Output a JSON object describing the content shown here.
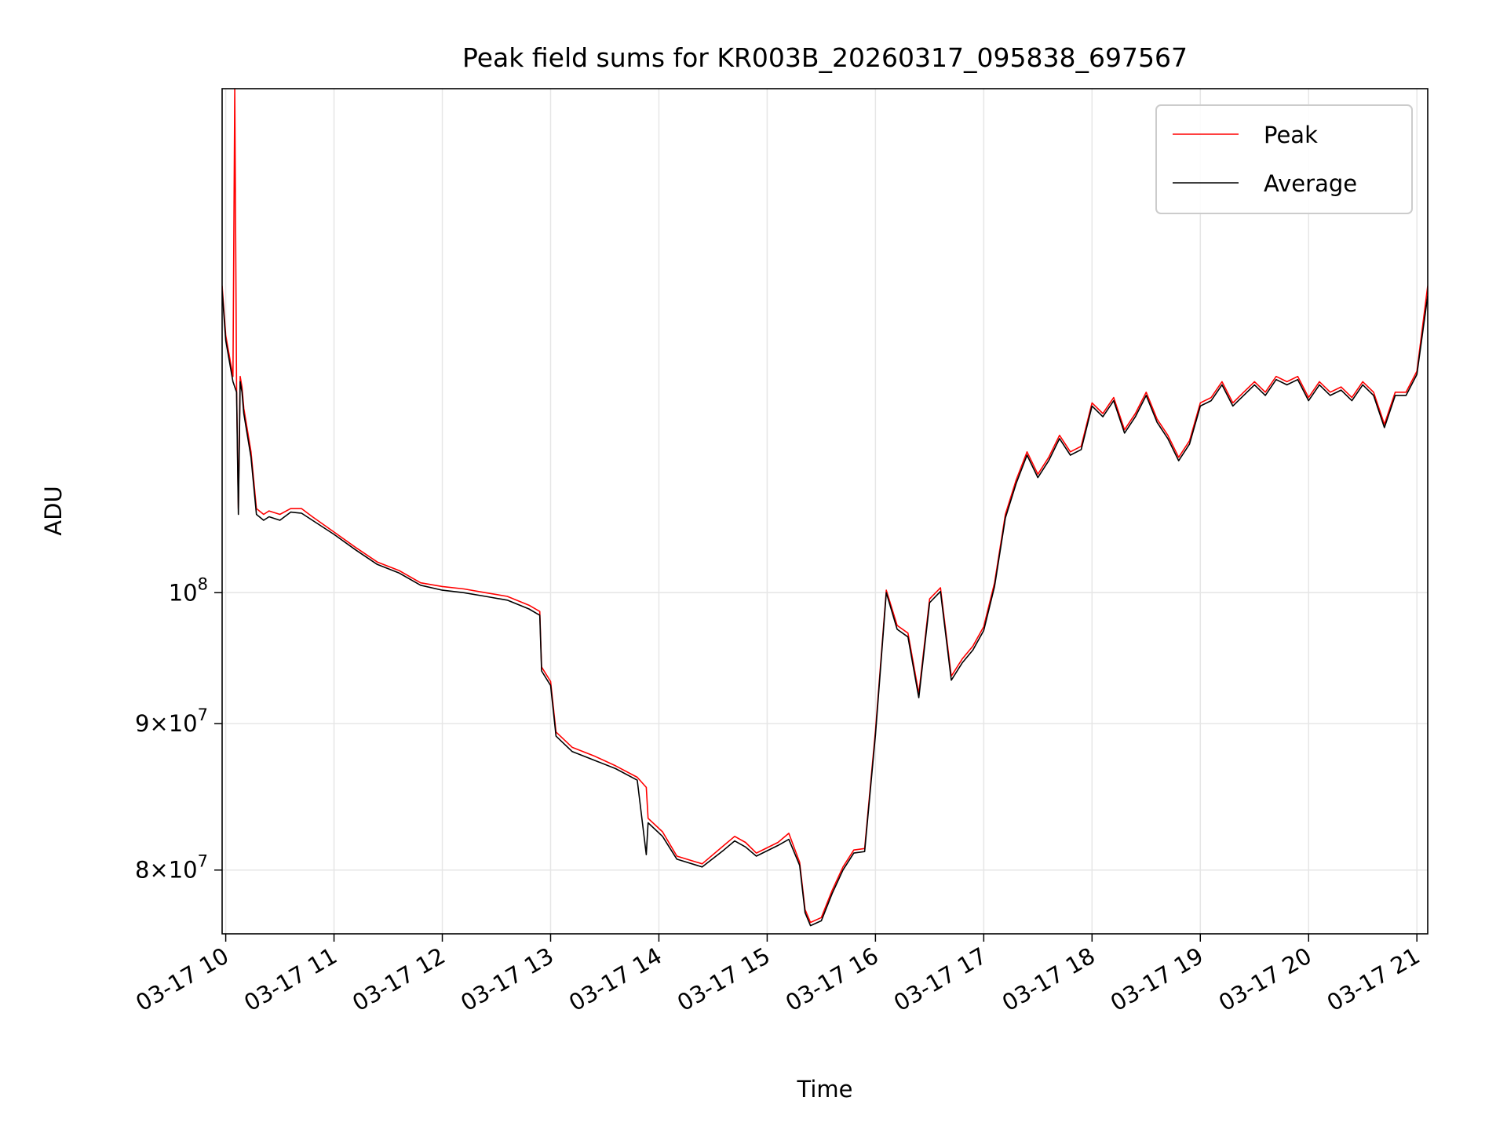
{
  "chart_data": {
    "type": "line",
    "title": "Peak field sums for KR003B_20260317_095838_697567",
    "xlabel": "Time",
    "ylabel": "ADU",
    "yscale": "log",
    "ylim": [
      76000000,
      150000000
    ],
    "xlim": [
      "2026-03-17 09:58",
      "2026-03-17 21:06"
    ],
    "grid": true,
    "legend": "top-right",
    "x_ticks": [
      "03-17 10",
      "03-17 11",
      "03-17 12",
      "03-17 13",
      "03-17 14",
      "03-17 15",
      "03-17 16",
      "03-17 17",
      "03-17 18",
      "03-17 19",
      "03-17 20",
      "03-17 21"
    ],
    "y_ticks": [
      {
        "value": 80000000,
        "mant": "8",
        "exp": "7"
      },
      {
        "value": 90000000,
        "mant": "9",
        "exp": "7"
      },
      {
        "value": 100000000,
        "mant": "",
        "exp": "8"
      }
    ],
    "colors": {
      "peak": "#ff0000",
      "average": "#000000"
    },
    "x": [
      "2026-03-17 09:58",
      "2026-03-17 10:00",
      "2026-03-17 10:04",
      "2026-03-17 10:05",
      "2026-03-17 10:06",
      "2026-03-17 10:07",
      "2026-03-17 10:08",
      "2026-03-17 10:09",
      "2026-03-17 10:10",
      "2026-03-17 10:14",
      "2026-03-17 10:17",
      "2026-03-17 10:21",
      "2026-03-17 10:24",
      "2026-03-17 10:30",
      "2026-03-17 10:36",
      "2026-03-17 10:42",
      "2026-03-17 10:48",
      "2026-03-17 11:00",
      "2026-03-17 11:12",
      "2026-03-17 11:24",
      "2026-03-17 11:36",
      "2026-03-17 11:48",
      "2026-03-17 12:00",
      "2026-03-17 12:12",
      "2026-03-17 12:24",
      "2026-03-17 12:36",
      "2026-03-17 12:48",
      "2026-03-17 12:54",
      "2026-03-17 12:55",
      "2026-03-17 13:00",
      "2026-03-17 13:03",
      "2026-03-17 13:12",
      "2026-03-17 13:24",
      "2026-03-17 13:36",
      "2026-03-17 13:48",
      "2026-03-17 13:53",
      "2026-03-17 13:54",
      "2026-03-17 14:02",
      "2026-03-17 14:10",
      "2026-03-17 14:24",
      "2026-03-17 14:36",
      "2026-03-17 14:42",
      "2026-03-17 14:48",
      "2026-03-17 14:54",
      "2026-03-17 15:06",
      "2026-03-17 15:12",
      "2026-03-17 15:18",
      "2026-03-17 15:21",
      "2026-03-17 15:24",
      "2026-03-17 15:30",
      "2026-03-17 15:36",
      "2026-03-17 15:42",
      "2026-03-17 15:48",
      "2026-03-17 15:54",
      "2026-03-17 16:00",
      "2026-03-17 16:06",
      "2026-03-17 16:12",
      "2026-03-17 16:18",
      "2026-03-17 16:24",
      "2026-03-17 16:30",
      "2026-03-17 16:36",
      "2026-03-17 16:42",
      "2026-03-17 16:48",
      "2026-03-17 16:54",
      "2026-03-17 17:00",
      "2026-03-17 17:06",
      "2026-03-17 17:12",
      "2026-03-17 17:18",
      "2026-03-17 17:24",
      "2026-03-17 17:30",
      "2026-03-17 17:36",
      "2026-03-17 17:42",
      "2026-03-17 17:48",
      "2026-03-17 17:54",
      "2026-03-17 18:00",
      "2026-03-17 18:06",
      "2026-03-17 18:12",
      "2026-03-17 18:18",
      "2026-03-17 18:24",
      "2026-03-17 18:30",
      "2026-03-17 18:36",
      "2026-03-17 18:42",
      "2026-03-17 18:48",
      "2026-03-17 18:54",
      "2026-03-17 19:00",
      "2026-03-17 19:06",
      "2026-03-17 19:12",
      "2026-03-17 19:18",
      "2026-03-17 19:24",
      "2026-03-17 19:30",
      "2026-03-17 19:36",
      "2026-03-17 19:42",
      "2026-03-17 19:48",
      "2026-03-17 19:54",
      "2026-03-17 20:00",
      "2026-03-17 20:06",
      "2026-03-17 20:12",
      "2026-03-17 20:18",
      "2026-03-17 20:24",
      "2026-03-17 20:30",
      "2026-03-17 20:36",
      "2026-03-17 20:42",
      "2026-03-17 20:48",
      "2026-03-17 20:54",
      "2026-03-17 21:00",
      "2026-03-17 21:06"
    ],
    "series": [
      {
        "name": "Peak",
        "values": [
          128000000,
          123000000,
          119000000,
          150000000,
          118000000,
          107000000,
          119000000,
          118000000,
          116000000,
          112000000,
          107000000,
          106500000,
          106800000,
          106500000,
          107000000,
          107000000,
          106300000,
          105000000,
          103700000,
          102500000,
          101800000,
          100800000,
          100500000,
          100300000,
          100000000,
          99700000,
          99000000,
          98500000,
          94200000,
          93100000,
          89400000,
          88300000,
          87700000,
          87000000,
          86200000,
          85500000,
          83400000,
          82500000,
          80900000,
          80400000,
          81600000,
          82200000,
          81800000,
          81100000,
          81800000,
          82400000,
          80500000,
          77500000,
          76700000,
          77000000,
          78700000,
          80200000,
          81300000,
          81400000,
          89500000,
          100200000,
          97400000,
          96800000,
          92200000,
          99500000,
          100400000,
          93500000,
          94800000,
          95800000,
          97300000,
          100800000,
          106500000,
          109500000,
          112000000,
          110000000,
          111500000,
          113500000,
          112000000,
          112500000,
          116500000,
          115500000,
          117000000,
          114000000,
          115500000,
          117500000,
          115000000,
          113500000,
          111500000,
          113000000,
          116500000,
          117000000,
          118500000,
          116500000,
          117500000,
          118500000,
          117500000,
          119000000,
          118500000,
          119000000,
          117000000,
          118500000,
          117500000,
          118000000,
          117000000,
          118500000,
          117500000,
          114500000,
          117500000,
          117500000,
          119500000,
          128000000
        ]
      },
      {
        "name": "Average",
        "values": [
          127500000,
          122500000,
          118500000,
          118000000,
          117500000,
          106500000,
          118500000,
          117500000,
          115500000,
          111500000,
          106500000,
          106000000,
          106300000,
          106000000,
          106700000,
          106600000,
          106000000,
          104800000,
          103500000,
          102300000,
          101600000,
          100600000,
          100200000,
          100000000,
          99700000,
          99400000,
          98700000,
          98200000,
          93900000,
          92800000,
          89100000,
          88000000,
          87400000,
          86800000,
          86000000,
          81000000,
          83100000,
          82200000,
          80700000,
          80200000,
          81300000,
          81900000,
          81500000,
          80900000,
          81600000,
          82000000,
          80300000,
          77300000,
          76500000,
          76800000,
          78500000,
          80000000,
          81100000,
          81200000,
          89200000,
          100000000,
          97100000,
          96500000,
          91900000,
          99200000,
          100100000,
          93200000,
          94500000,
          95500000,
          97000000,
          100500000,
          106200000,
          109200000,
          111700000,
          109700000,
          111200000,
          113200000,
          111700000,
          112200000,
          116200000,
          115200000,
          116700000,
          113700000,
          115200000,
          117200000,
          114700000,
          113200000,
          111200000,
          112700000,
          116200000,
          116700000,
          118200000,
          116200000,
          117200000,
          118200000,
          117200000,
          118700000,
          118200000,
          118700000,
          116700000,
          118200000,
          117200000,
          117700000,
          116700000,
          118200000,
          117200000,
          114200000,
          117200000,
          117200000,
          119200000,
          127000000
        ]
      }
    ]
  }
}
